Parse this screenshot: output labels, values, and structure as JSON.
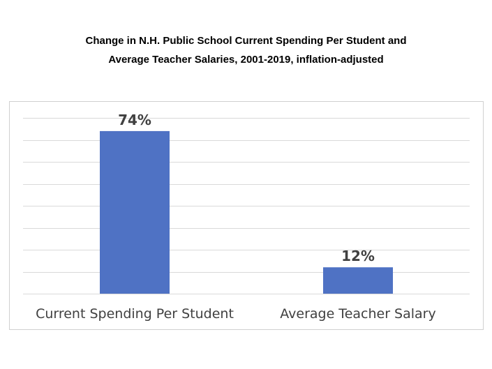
{
  "title": {
    "line1": "Change in N.H. Public School Current Spending Per Student and",
    "line2": "Average Teacher Salaries, 2001-2019, inflation-adjusted"
  },
  "chart_data": {
    "type": "bar",
    "title": "Change in N.H. Public School Current Spending Per Student and Average Teacher Salaries, 2001-2019, inflation-adjusted",
    "categories": [
      "Current Spending Per Student",
      "Average Teacher Salary"
    ],
    "values": [
      74,
      12
    ],
    "data_labels": [
      "74%",
      "12%"
    ],
    "xlabel": "",
    "ylabel": "",
    "ylim": [
      0,
      80
    ],
    "y_gridline_step": 10,
    "grid": true,
    "legend": "none",
    "colors": {
      "bar": "#4F72C4",
      "gridline": "#d9d9d9",
      "label_text": "#404040"
    }
  }
}
